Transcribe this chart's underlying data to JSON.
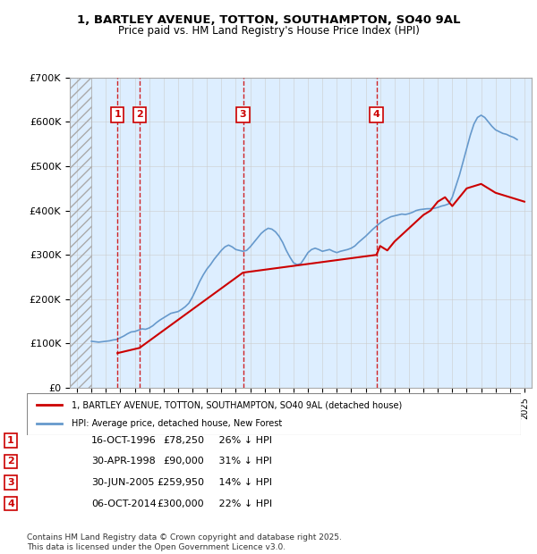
{
  "title": "1, BARTLEY AVENUE, TOTTON, SOUTHAMPTON, SO40 9AL",
  "subtitle": "Price paid vs. HM Land Registry's House Price Index (HPI)",
  "red_line_color": "#cc0000",
  "blue_line_color": "#6699cc",
  "background_color": "#ddeeff",
  "hatch_color": "#cccccc",
  "marker_color": "#cc0000",
  "grid_color": "#cccccc",
  "ylim": [
    0,
    700000
  ],
  "yticks": [
    0,
    100000,
    200000,
    300000,
    400000,
    500000,
    600000,
    700000
  ],
  "ytick_labels": [
    "£0",
    "£100K",
    "£200K",
    "£300K",
    "£400K",
    "£500K",
    "£600K",
    "£700K"
  ],
  "xlim_start": 1993.5,
  "xlim_end": 2025.5,
  "transactions": [
    {
      "num": 1,
      "date": "16-OCT-1996",
      "price": 78250,
      "year": 1996.8,
      "pct": "26%",
      "dir": "↓"
    },
    {
      "num": 2,
      "date": "30-APR-1998",
      "price": 90000,
      "year": 1998.33,
      "pct": "31%",
      "dir": "↓"
    },
    {
      "num": 3,
      "date": "30-JUN-2005",
      "price": 259950,
      "year": 2005.5,
      "pct": "14%",
      "dir": "↓"
    },
    {
      "num": 4,
      "date": "06-OCT-2014",
      "price": 300000,
      "year": 2014.75,
      "pct": "22%",
      "dir": "↓"
    }
  ],
  "legend_red_label": "1, BARTLEY AVENUE, TOTTON, SOUTHAMPTON, SO40 9AL (detached house)",
  "legend_blue_label": "HPI: Average price, detached house, New Forest",
  "footer": "Contains HM Land Registry data © Crown copyright and database right 2025.\nThis data is licensed under the Open Government Licence v3.0.",
  "hpi_data": {
    "years": [
      1995.0,
      1995.25,
      1995.5,
      1995.75,
      1996.0,
      1996.25,
      1996.5,
      1996.75,
      1997.0,
      1997.25,
      1997.5,
      1997.75,
      1998.0,
      1998.25,
      1998.5,
      1998.75,
      1999.0,
      1999.25,
      1999.5,
      1999.75,
      2000.0,
      2000.25,
      2000.5,
      2000.75,
      2001.0,
      2001.25,
      2001.5,
      2001.75,
      2002.0,
      2002.25,
      2002.5,
      2002.75,
      2003.0,
      2003.25,
      2003.5,
      2003.75,
      2004.0,
      2004.25,
      2004.5,
      2004.75,
      2005.0,
      2005.25,
      2005.5,
      2005.75,
      2006.0,
      2006.25,
      2006.5,
      2006.75,
      2007.0,
      2007.25,
      2007.5,
      2007.75,
      2008.0,
      2008.25,
      2008.5,
      2008.75,
      2009.0,
      2009.25,
      2009.5,
      2009.75,
      2010.0,
      2010.25,
      2010.5,
      2010.75,
      2011.0,
      2011.25,
      2011.5,
      2011.75,
      2012.0,
      2012.25,
      2012.5,
      2012.75,
      2013.0,
      2013.25,
      2013.5,
      2013.75,
      2014.0,
      2014.25,
      2014.5,
      2014.75,
      2015.0,
      2015.25,
      2015.5,
      2015.75,
      2016.0,
      2016.25,
      2016.5,
      2016.75,
      2017.0,
      2017.25,
      2017.5,
      2017.75,
      2018.0,
      2018.25,
      2018.5,
      2018.75,
      2019.0,
      2019.25,
      2019.5,
      2019.75,
      2020.0,
      2020.25,
      2020.5,
      2020.75,
      2021.0,
      2021.25,
      2021.5,
      2021.75,
      2022.0,
      2022.25,
      2022.5,
      2022.75,
      2023.0,
      2023.25,
      2023.5,
      2023.75,
      2024.0,
      2024.25,
      2024.5
    ],
    "values": [
      105000,
      104000,
      103000,
      104000,
      105000,
      106000,
      108000,
      109000,
      113000,
      117000,
      122000,
      126000,
      127000,
      130000,
      133000,
      132000,
      135000,
      140000,
      147000,
      153000,
      158000,
      163000,
      168000,
      170000,
      172000,
      177000,
      183000,
      191000,
      205000,
      222000,
      240000,
      255000,
      268000,
      278000,
      290000,
      300000,
      310000,
      318000,
      322000,
      318000,
      312000,
      310000,
      308000,
      310000,
      318000,
      328000,
      338000,
      348000,
      355000,
      360000,
      358000,
      352000,
      342000,
      328000,
      310000,
      295000,
      282000,
      278000,
      280000,
      292000,
      305000,
      312000,
      315000,
      312000,
      308000,
      310000,
      312000,
      308000,
      305000,
      308000,
      310000,
      312000,
      315000,
      320000,
      328000,
      335000,
      342000,
      350000,
      358000,
      365000,
      372000,
      378000,
      382000,
      386000,
      388000,
      390000,
      392000,
      391000,
      393000,
      396000,
      400000,
      402000,
      403000,
      404000,
      404000,
      405000,
      407000,
      410000,
      412000,
      415000,
      430000,
      455000,
      480000,
      510000,
      540000,
      570000,
      595000,
      610000,
      615000,
      610000,
      600000,
      590000,
      582000,
      578000,
      574000,
      572000,
      568000,
      565000,
      560000
    ]
  },
  "red_data": {
    "years": [
      1996.8,
      1998.33,
      2005.5,
      2014.75,
      2015.0,
      2015.5,
      2016.0,
      2017.0,
      2018.0,
      2018.5,
      2019.0,
      2019.5,
      2020.0,
      2021.0,
      2022.0,
      2022.5,
      2023.0,
      2023.5,
      2024.0,
      2024.5,
      2025.0
    ],
    "values": [
      78250,
      90000,
      259950,
      300000,
      320000,
      310000,
      330000,
      360000,
      390000,
      400000,
      420000,
      430000,
      410000,
      450000,
      460000,
      450000,
      440000,
      435000,
      430000,
      425000,
      420000
    ]
  }
}
